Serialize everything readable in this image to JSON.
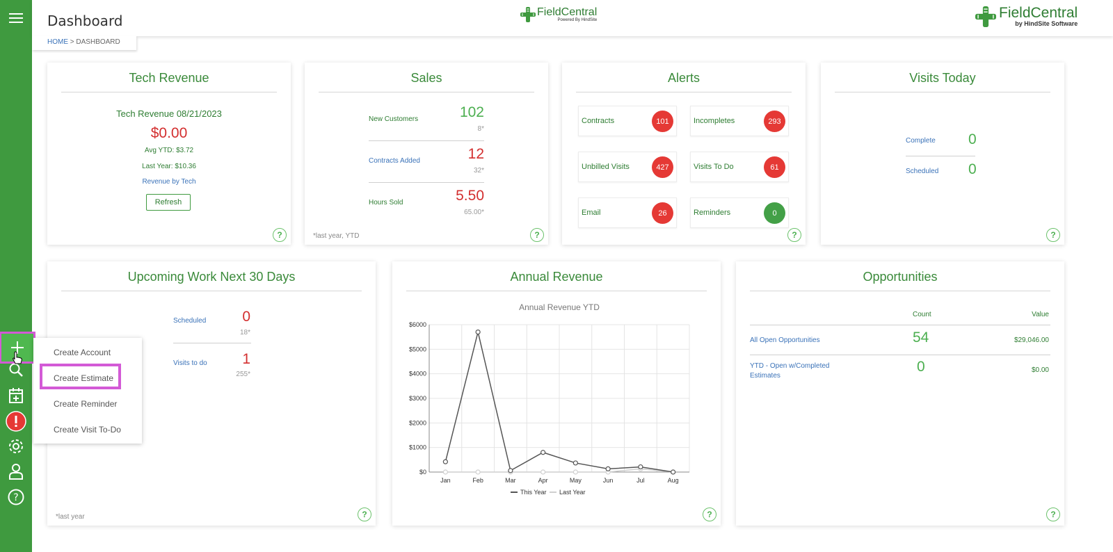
{
  "header": {
    "title": "Dashboard",
    "breadcrumb_home": "HOME",
    "breadcrumb_sep": " > ",
    "breadcrumb_current": "DASHBOARD",
    "center_logo": "FieldCentral",
    "center_logo_sub": "Powered By",
    "center_logo_sub2": "HindSite",
    "right_logo": "FieldCentral",
    "right_logo_sub": "by HindSite Software"
  },
  "add_menu": {
    "items": [
      "Create Account",
      "Create Estimate",
      "Create Reminder",
      "Create Visit To-Do"
    ]
  },
  "tech_revenue": {
    "title": "Tech Revenue",
    "date_label": "Tech Revenue 08/21/2023",
    "amount": "$0.00",
    "avg_ytd": "Avg YTD: $3.72",
    "last_year": "Last Year: $10.36",
    "link": "Revenue by Tech",
    "refresh": "Refresh"
  },
  "sales": {
    "title": "Sales",
    "rows": [
      {
        "label": "New Customers",
        "value": "102",
        "sub": "8*"
      },
      {
        "label": "Contracts Added",
        "value": "12",
        "sub": "32*"
      },
      {
        "label": "Hours Sold",
        "value": "5.50",
        "sub": "65.00*"
      }
    ],
    "note": "*last year, YTD"
  },
  "alerts": {
    "title": "Alerts",
    "items": [
      {
        "label": "Contracts",
        "count": "101"
      },
      {
        "label": "Incompletes",
        "count": "293"
      },
      {
        "label": "Unbilled Visits",
        "count": "427"
      },
      {
        "label": "Visits To Do",
        "count": "61"
      },
      {
        "label": "Email",
        "count": "26"
      },
      {
        "label": "Reminders",
        "count": "0"
      }
    ]
  },
  "visits_today": {
    "title": "Visits Today",
    "rows": [
      {
        "label": "Complete",
        "value": "0"
      },
      {
        "label": "Scheduled",
        "value": "0"
      }
    ]
  },
  "upcoming": {
    "title": "Upcoming Work Next 30 Days",
    "rows": [
      {
        "label": "Scheduled",
        "value": "0",
        "sub": "18*"
      },
      {
        "label": "Visits to do",
        "value": "1",
        "sub": "255*"
      }
    ],
    "note": "*last year"
  },
  "annual_revenue": {
    "title": "Annual Revenue"
  },
  "opportunities": {
    "title": "Opportunities",
    "col_count": "Count",
    "col_value": "Value",
    "rows": [
      {
        "label": "All Open Opportunities",
        "count": "54",
        "value": "$29,046.00"
      },
      {
        "label": "YTD - Open w/Completed Estimates",
        "count": "0",
        "value": "$0.00"
      }
    ]
  },
  "help_label": "?",
  "colors": {
    "sidebar": "#3f9a3f",
    "title_green": "#3a8a3a",
    "value_red": "#d32f2f",
    "value_green": "#4caf50",
    "badge_red": "#e53935",
    "badge_green": "#43a047",
    "highlight": "#d35ad6"
  },
  "chart_data": {
    "type": "line",
    "title": "Annual Revenue YTD",
    "categories": [
      "Jan",
      "Feb",
      "Mar",
      "Apr",
      "May",
      "Jun",
      "Jul",
      "Aug"
    ],
    "series": [
      {
        "name": "This Year",
        "values": [
          420,
          5700,
          60,
          800,
          370,
          130,
          210,
          0
        ]
      },
      {
        "name": "Last Year",
        "values": [
          0,
          0,
          0,
          0,
          0,
          0,
          130,
          0
        ]
      }
    ],
    "yticks": [
      "$0",
      "$1000",
      "$2000",
      "$3000",
      "$4000",
      "$5000",
      "$6000"
    ],
    "ylim": [
      0,
      6000
    ],
    "grid": true,
    "legend": "bottom"
  }
}
